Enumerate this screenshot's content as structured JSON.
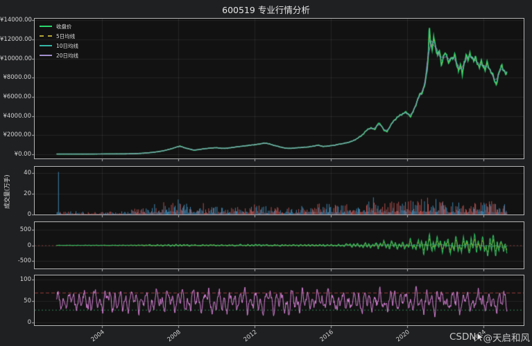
{
  "window": {
    "title": "600519 专业行情分析",
    "watermark_csdn": "CSDN",
    "watermark_user": "@天启和风",
    "bg_color": "#1f2022",
    "panel_bg": "#121212",
    "spine_color": "#b5b5b5",
    "text_color": "#d2d2d2"
  },
  "x_axis": {
    "start": 2001.62,
    "end": 2025.25,
    "range": [
      2000.47,
      2026.12
    ],
    "ticks": [
      2004,
      2008,
      2012,
      2016,
      2020,
      2024
    ],
    "tick_labels": [
      "2004",
      "2008",
      "2012",
      "2016",
      "2020",
      "2024"
    ]
  },
  "chart_data": [
    {
      "type": "line",
      "panel": "price",
      "ylim": [
        -435,
        14180
      ],
      "yticks": [
        0,
        2000,
        4000,
        6000,
        8000,
        10000,
        12000,
        14000
      ],
      "ytick_labels": [
        "¥0.00",
        "¥2000.00",
        "¥4000.00",
        "¥6000.00",
        "¥8000.00",
        "¥10000.00",
        "¥12000.00",
        "¥14000.00"
      ],
      "legend_position": "upper left",
      "series": [
        {
          "name": "收盘价",
          "color": "#2bd96e",
          "dash": "solid",
          "width": 1.7
        },
        {
          "name": "5日均线",
          "color": "#b8a83a",
          "dash": "dashed",
          "width": 0.9
        },
        {
          "name": "10日均线",
          "color": "#35b8a8",
          "dash": "solid",
          "width": 0.9
        },
        {
          "name": "20日均线",
          "color": "#a490cf",
          "dash": "solid",
          "width": 0.9
        }
      ],
      "close_keypoints": [
        [
          2001.62,
          30
        ],
        [
          2002,
          33
        ],
        [
          2002.5,
          30
        ],
        [
          2003,
          28
        ],
        [
          2003.5,
          31
        ],
        [
          2004,
          37
        ],
        [
          2004.5,
          42
        ],
        [
          2005,
          46
        ],
        [
          2005.5,
          56
        ],
        [
          2006,
          95
        ],
        [
          2006.4,
          150
        ],
        [
          2006.8,
          235
        ],
        [
          2007.2,
          360
        ],
        [
          2007.6,
          560
        ],
        [
          2007.95,
          780
        ],
        [
          2008.1,
          865
        ],
        [
          2008.3,
          700
        ],
        [
          2008.6,
          545
        ],
        [
          2008.85,
          425
        ],
        [
          2009.1,
          505
        ],
        [
          2009.4,
          590
        ],
        [
          2009.7,
          655
        ],
        [
          2010,
          690
        ],
        [
          2010.3,
          615
        ],
        [
          2010.6,
          645
        ],
        [
          2010.9,
          730
        ],
        [
          2011.2,
          815
        ],
        [
          2011.5,
          885
        ],
        [
          2011.8,
          960
        ],
        [
          2012.1,
          1025
        ],
        [
          2012.4,
          1135
        ],
        [
          2012.6,
          1180
        ],
        [
          2012.8,
          1075
        ],
        [
          2013,
          945
        ],
        [
          2013.3,
          795
        ],
        [
          2013.6,
          645
        ],
        [
          2013.9,
          615
        ],
        [
          2014.2,
          675
        ],
        [
          2014.5,
          720
        ],
        [
          2014.8,
          765
        ],
        [
          2015.1,
          855
        ],
        [
          2015.35,
          955
        ],
        [
          2015.6,
          815
        ],
        [
          2015.9,
          870
        ],
        [
          2016.2,
          950
        ],
        [
          2016.5,
          1080
        ],
        [
          2016.8,
          1185
        ],
        [
          2017.1,
          1350
        ],
        [
          2017.4,
          1655
        ],
        [
          2017.7,
          2105
        ],
        [
          2017.95,
          2650
        ],
        [
          2018.1,
          2745
        ],
        [
          2018.3,
          2590
        ],
        [
          2018.5,
          3240
        ],
        [
          2018.65,
          3040
        ],
        [
          2018.8,
          2490
        ],
        [
          2018.95,
          2360
        ],
        [
          2019.1,
          2900
        ],
        [
          2019.3,
          3495
        ],
        [
          2019.5,
          3890
        ],
        [
          2019.7,
          4145
        ],
        [
          2019.9,
          4395
        ],
        [
          2020.05,
          4240
        ],
        [
          2020.2,
          3950
        ],
        [
          2020.35,
          4600
        ],
        [
          2020.5,
          5390
        ],
        [
          2020.65,
          6180
        ],
        [
          2020.8,
          6480
        ],
        [
          2020.95,
          7390
        ],
        [
          2021.05,
          8620
        ],
        [
          2021.12,
          10480
        ],
        [
          2021.17,
          13480
        ],
        [
          2021.24,
          11750
        ],
        [
          2021.32,
          10760
        ],
        [
          2021.4,
          12260
        ],
        [
          2021.5,
          11290
        ],
        [
          2021.6,
          10380
        ],
        [
          2021.7,
          10870
        ],
        [
          2021.8,
          9280
        ],
        [
          2021.9,
          10180
        ],
        [
          2022,
          10680
        ],
        [
          2022.1,
          10080
        ],
        [
          2022.2,
          9480
        ],
        [
          2022.3,
          10280
        ],
        [
          2022.4,
          9780
        ],
        [
          2022.5,
          10480
        ],
        [
          2022.6,
          9580
        ],
        [
          2022.7,
          8680
        ],
        [
          2022.8,
          9280
        ],
        [
          2022.9,
          8480
        ],
        [
          2023,
          9580
        ],
        [
          2023.1,
          10280
        ],
        [
          2023.2,
          9880
        ],
        [
          2023.3,
          10580
        ],
        [
          2023.4,
          10080
        ],
        [
          2023.5,
          9680
        ],
        [
          2023.6,
          10180
        ],
        [
          2023.7,
          9480
        ],
        [
          2023.8,
          9080
        ],
        [
          2023.9,
          9680
        ],
        [
          2024,
          9280
        ],
        [
          2024.1,
          8880
        ],
        [
          2024.2,
          9480
        ],
        [
          2024.3,
          9080
        ],
        [
          2024.4,
          8680
        ],
        [
          2024.5,
          8280
        ],
        [
          2024.6,
          7580
        ],
        [
          2024.68,
          7230
        ],
        [
          2024.78,
          8280
        ],
        [
          2024.88,
          8880
        ],
        [
          2024.98,
          9280
        ],
        [
          2025.08,
          8780
        ],
        [
          2025.18,
          8430
        ],
        [
          2025.25,
          8580
        ]
      ]
    },
    {
      "type": "bar",
      "panel": "volume",
      "ylabel": "成交量(万手)",
      "ylim": [
        0,
        46
      ],
      "yticks": [
        0,
        20,
        40
      ],
      "ytick_labels": [
        "0",
        "20",
        "40"
      ],
      "up_color": "#b1504e",
      "down_color": "#3e84ae",
      "ipo_spike": {
        "x": 2001.7,
        "value": 41,
        "color": "#3e84ae"
      },
      "envelope": [
        [
          2001.62,
          2.5
        ],
        [
          2002,
          2
        ],
        [
          2003,
          1.5
        ],
        [
          2004,
          1.5
        ],
        [
          2005,
          2
        ],
        [
          2006,
          3.5
        ],
        [
          2007,
          6
        ],
        [
          2007.6,
          8
        ],
        [
          2008,
          6.5
        ],
        [
          2009,
          4.5
        ],
        [
          2010,
          4
        ],
        [
          2011,
          4.5
        ],
        [
          2012,
          5.5
        ],
        [
          2013,
          4
        ],
        [
          2014,
          3.5
        ],
        [
          2015.3,
          8
        ],
        [
          2015.7,
          6
        ],
        [
          2016,
          5
        ],
        [
          2017,
          6
        ],
        [
          2018,
          7.5
        ],
        [
          2018.8,
          6
        ],
        [
          2019,
          6.5
        ],
        [
          2020,
          7
        ],
        [
          2020.8,
          8
        ],
        [
          2021.2,
          9
        ],
        [
          2022,
          6.5
        ],
        [
          2023,
          6
        ],
        [
          2023.8,
          7
        ],
        [
          2024.3,
          7.5
        ],
        [
          2025.25,
          5.5
        ]
      ]
    },
    {
      "type": "line",
      "panel": "oscillator",
      "ylim": [
        -760,
        760
      ],
      "yticks": [
        -500,
        0,
        500
      ],
      "ytick_labels": [
        "-500",
        "0",
        "500"
      ],
      "fast_color": "#2fbf5f",
      "slow_color": "#c9b40e",
      "smooth_color": "#2aa198",
      "zero_line_color": "#8b3a3a",
      "amplitude_envelope": [
        [
          2001.62,
          3
        ],
        [
          2004,
          5
        ],
        [
          2006,
          12
        ],
        [
          2007,
          30
        ],
        [
          2008.2,
          50
        ],
        [
          2009,
          25
        ],
        [
          2010,
          25
        ],
        [
          2011,
          30
        ],
        [
          2012,
          40
        ],
        [
          2013,
          35
        ],
        [
          2014,
          25
        ],
        [
          2015.3,
          55
        ],
        [
          2016,
          40
        ],
        [
          2017,
          70
        ],
        [
          2018,
          120
        ],
        [
          2018.8,
          150
        ],
        [
          2019.5,
          150
        ],
        [
          2020,
          180
        ],
        [
          2020.8,
          260
        ],
        [
          2021.2,
          430
        ],
        [
          2021.6,
          360
        ],
        [
          2022,
          340
        ],
        [
          2022.5,
          310
        ],
        [
          2023,
          330
        ],
        [
          2023.5,
          390
        ],
        [
          2024,
          360
        ],
        [
          2024.4,
          450
        ],
        [
          2024.8,
          380
        ],
        [
          2025.25,
          300
        ]
      ]
    },
    {
      "type": "line",
      "panel": "rsi",
      "ylim": [
        -6,
        110
      ],
      "yticks": [
        0,
        50,
        100
      ],
      "ytick_labels": [
        "0",
        "50",
        "100"
      ],
      "line_color": "#d983d9",
      "mean": 50,
      "amplitude": 26,
      "upper_band": 70,
      "upper_band_color": "#9c3b3b",
      "lower_band": 30,
      "lower_band_color": "#2e8b57"
    }
  ]
}
